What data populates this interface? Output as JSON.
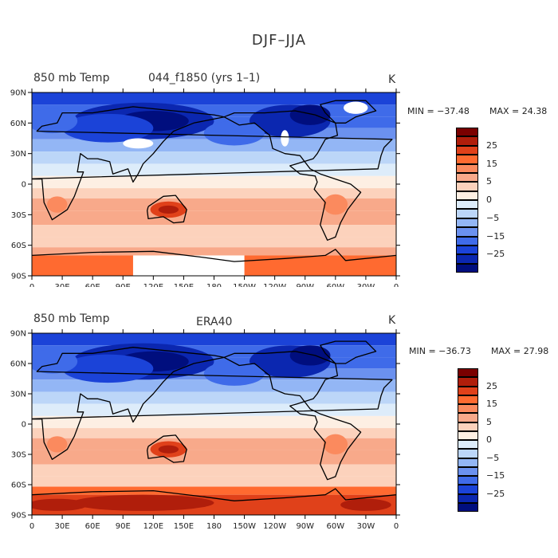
{
  "title": "DJF–JJA",
  "panels": [
    {
      "variable": "850 mb Temp",
      "case": "044_f1850 (yrs 1–1)",
      "units": "K",
      "min_label": "MIN = −37.48",
      "max_label": "MAX =  24.38"
    },
    {
      "variable": "850 mb Temp",
      "case": "ERA40",
      "units": "K",
      "min_label": "MIN = −36.73",
      "max_label": "MAX =  27.98"
    }
  ],
  "axes": {
    "lat_labels": [
      "90N",
      "60N",
      "30N",
      "0",
      "30S",
      "60S",
      "90S"
    ],
    "lon_labels": [
      "0",
      "30E",
      "60E",
      "90E",
      "120E",
      "150E",
      "180",
      "150W",
      "120W",
      "90W",
      "60W",
      "30W",
      "0"
    ]
  },
  "colorbar": {
    "labels": [
      "25",
      "15",
      "5",
      "0",
      "−5",
      "−15",
      "−25"
    ],
    "colors": [
      "#7a0000",
      "#b01e0b",
      "#e0411a",
      "#ff6a30",
      "#fb8a5e",
      "#f8a98a",
      "#fcd2bc",
      "#fdefe3",
      "#ddecfa",
      "#bcd6f8",
      "#93b6f5",
      "#6b91ef",
      "#3f6be9",
      "#1b43d8",
      "#0b27b0",
      "#000e7e"
    ]
  },
  "colors": {
    "missing": "#ffffff",
    "coastline": "#000000"
  }
}
